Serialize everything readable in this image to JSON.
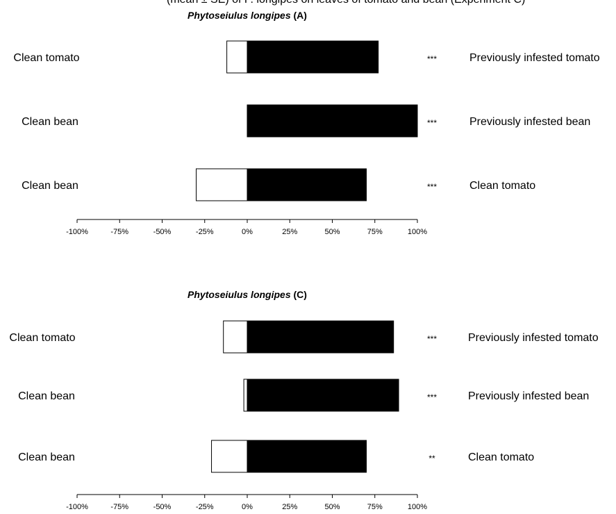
{
  "header_fragment": "(mean ± SE) of P. longipes on leaves of tomato and bean (Experiment C)",
  "chart_data": [
    {
      "type": "bar",
      "orientation": "horizontal-diverging",
      "title_species": "Phytoseiulus longipes",
      "title_suffix": " (A)",
      "xlim": [
        -100,
        100
      ],
      "xticks": [
        "-100%",
        "-75%",
        "-50%",
        "-25%",
        "0%",
        "25%",
        "50%",
        "75%",
        "100%"
      ],
      "rows": [
        {
          "left": "Clean tomato",
          "right": "Previously infested tomato",
          "left_value": -12,
          "right_value": 77,
          "sig": "***"
        },
        {
          "left": "Clean bean",
          "right": "Previously infested bean",
          "left_value": 0,
          "right_value": 100,
          "sig": "***"
        },
        {
          "left": "Clean bean",
          "right": "Clean tomato",
          "left_value": -30,
          "right_value": 70,
          "sig": "***"
        }
      ]
    },
    {
      "type": "bar",
      "orientation": "horizontal-diverging",
      "title_species": "Phytoseiulus longipes",
      "title_suffix": " (C)",
      "xlim": [
        -100,
        100
      ],
      "xticks": [
        "-100%",
        "-75%",
        "-50%",
        "-25%",
        "0%",
        "25%",
        "50%",
        "75%",
        "100%"
      ],
      "rows": [
        {
          "left": "Clean tomato",
          "right": "Previously infested tomato",
          "left_value": -14,
          "right_value": 86,
          "sig": "***"
        },
        {
          "left": "Clean bean",
          "right": "Previously infested bean",
          "left_value": -2,
          "right_value": 89,
          "sig": "***"
        },
        {
          "left": "Clean bean",
          "right": "Clean tomato",
          "left_value": -21,
          "right_value": 70,
          "sig": "**"
        }
      ]
    }
  ]
}
